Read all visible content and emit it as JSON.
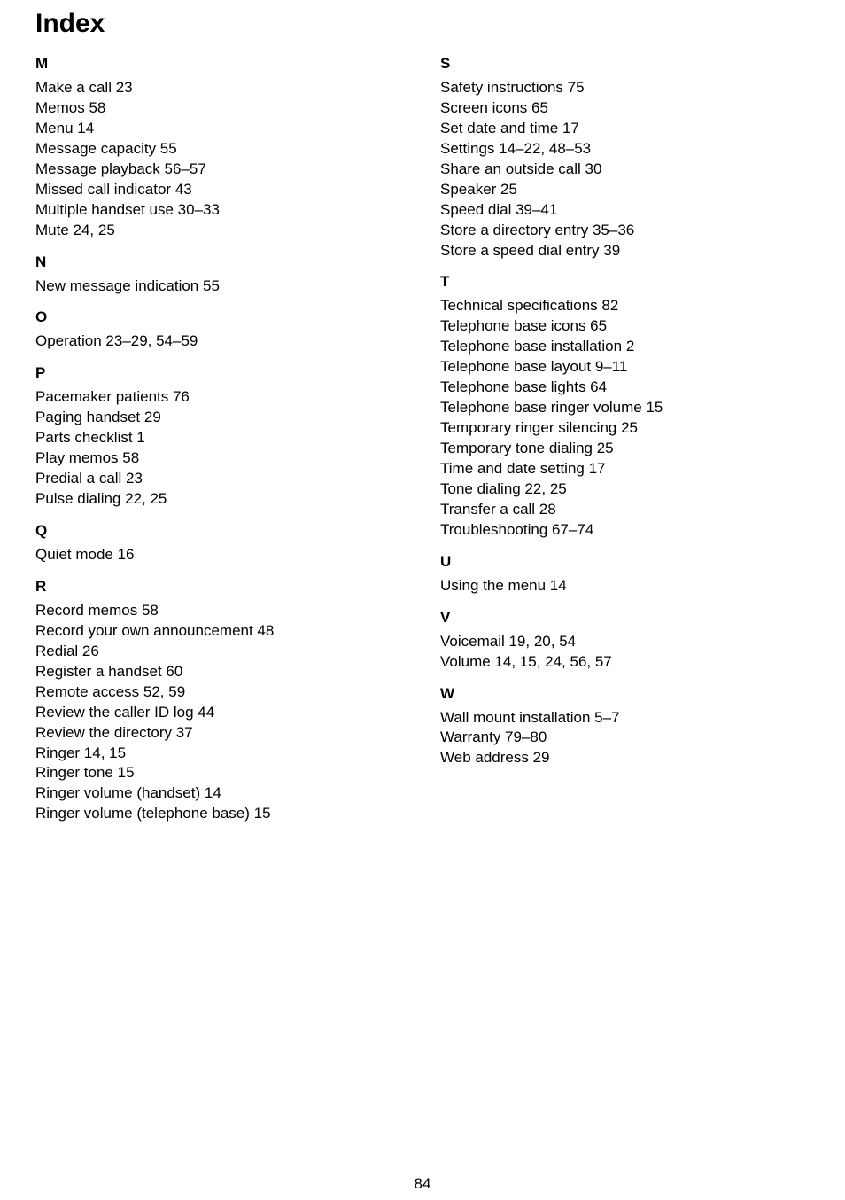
{
  "title": "Index",
  "pageNumber": "84",
  "left": [
    {
      "letter": "M",
      "entries": [
        "Make a call  23",
        "Memos  58",
        "Menu  14",
        "Message capacity  55",
        "Message playback  56–57",
        "Missed call indicator  43",
        "Multiple handset use  30–33",
        "Mute  24, 25"
      ]
    },
    {
      "letter": "N",
      "entries": [
        "New message indication  55"
      ]
    },
    {
      "letter": "O",
      "entries": [
        "Operation  23–29, 54–59"
      ]
    },
    {
      "letter": "P",
      "entries": [
        "Pacemaker patients  76",
        "Paging handset  29",
        "Parts checklist  1",
        "Play memos  58",
        "Predial a call  23",
        "Pulse dialing  22, 25"
      ]
    },
    {
      "letter": "Q",
      "entries": [
        "Quiet mode  16"
      ]
    },
    {
      "letter": "R",
      "entries": [
        "Record memos  58",
        "Record your own announcement  48",
        "Redial  26",
        "Register a handset  60",
        "Remote access  52, 59",
        "Review the caller ID log  44",
        "Review the directory  37",
        "Ringer  14, 15",
        "Ringer tone  15",
        "Ringer volume (handset)  14",
        "Ringer volume (telephone base)  15"
      ]
    }
  ],
  "right": [
    {
      "letter": "S",
      "entries": [
        "Safety instructions  75",
        "Screen icons  65",
        "Set date and time  17",
        "Settings  14–22, 48–53",
        "Share an outside call  30",
        "Speaker  25",
        "Speed dial  39–41",
        "Store a directory entry  35–36",
        "Store a speed dial entry  39"
      ]
    },
    {
      "letter": "T",
      "entries": [
        "Technical specifications  82",
        "Telephone base icons  65",
        "Telephone base installation  2",
        "Telephone base layout  9–11",
        "Telephone base lights  64",
        "Telephone base ringer volume  15",
        "Temporary ringer silencing  25",
        "Temporary tone dialing  25",
        "Time and date setting  17",
        "Tone dialing  22, 25",
        "Transfer a call  28",
        "Troubleshooting  67–74"
      ]
    },
    {
      "letter": "U",
      "entries": [
        "Using the menu  14"
      ]
    },
    {
      "letter": "V",
      "entries": [
        "Voicemail  19, 20, 54",
        "Volume  14, 15, 24, 56, 57"
      ]
    },
    {
      "letter": "W",
      "entries": [
        "Wall mount installation  5–7",
        "Warranty  79–80",
        "Web address  29"
      ]
    }
  ]
}
